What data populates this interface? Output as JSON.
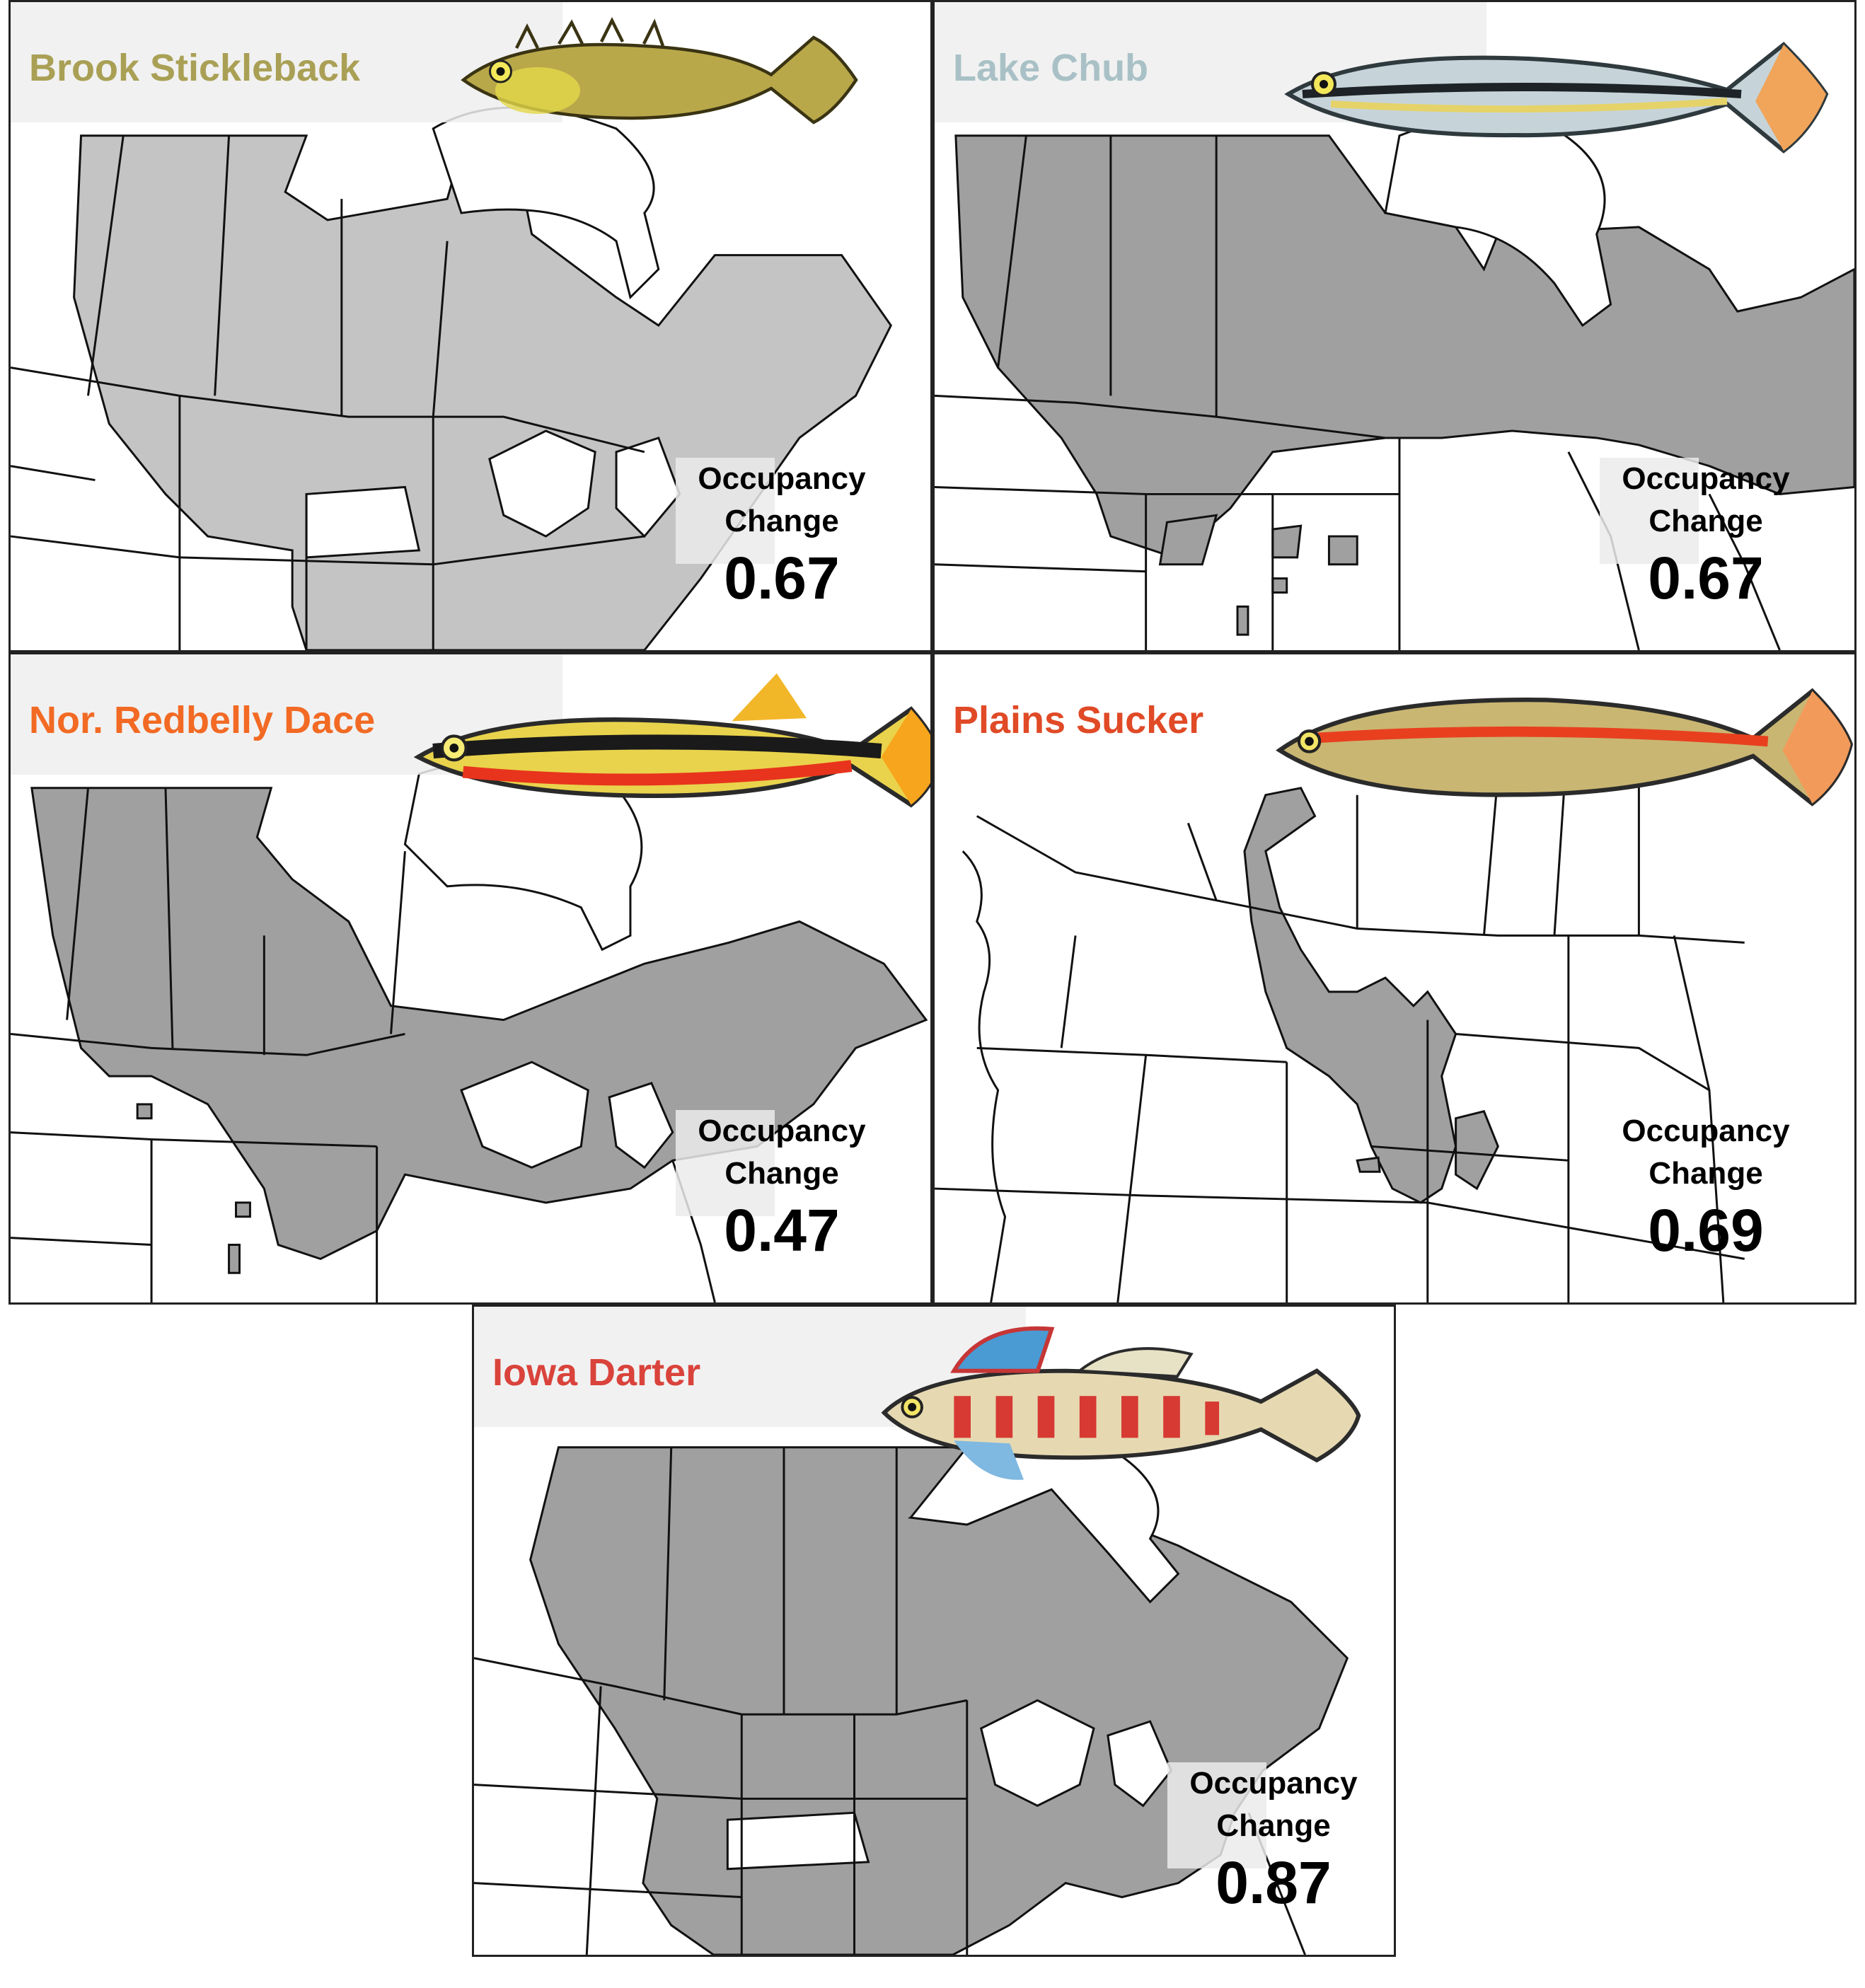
{
  "colors": {
    "range_fill": "#a0a0a0",
    "range_fill_light": "#c4c4c4",
    "border": "#111111",
    "land": "#ffffff"
  },
  "occupancy_label": "Occupancy Change",
  "panels": [
    {
      "species": "Brook Stickleback",
      "label_color": "#a9a055",
      "fish_icon": "brook-stickleback-fish-icon",
      "occupancy_change": "0.67"
    },
    {
      "species": "Lake Chub",
      "label_color": "#a9c1c6",
      "fish_icon": "lake-chub-fish-icon",
      "occupancy_change": "0.67"
    },
    {
      "species": "Nor. Redbelly Dace",
      "label_color": "#f26a24",
      "fish_icon": "northern-redbelly-dace-fish-icon",
      "occupancy_change": "0.47"
    },
    {
      "species": "Plains Sucker",
      "label_color": "#e04a26",
      "fish_icon": "plains-sucker-fish-icon",
      "occupancy_change": "0.69"
    },
    {
      "species": "Iowa Darter",
      "label_color": "#d9433b",
      "fish_icon": "iowa-darter-fish-icon",
      "occupancy_change": "0.87"
    }
  ]
}
